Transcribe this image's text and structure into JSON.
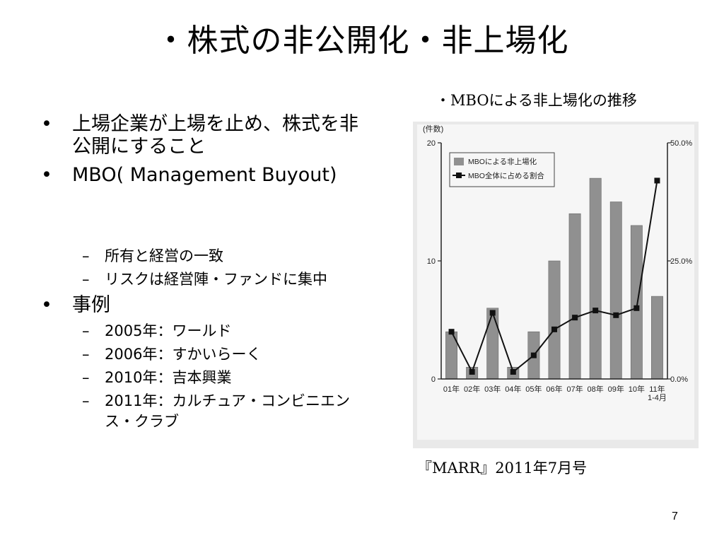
{
  "slide": {
    "title": "・株式の非公開化・非上場化",
    "page_number": "7",
    "source_note": "『MARR』2011年7月号",
    "chart_caption": "・MBOによる非上場化の推移"
  },
  "bullets": {
    "b1": "上場企業が上場を止め、株式を非公開にすること",
    "b2": "MBO( Management Buyout)",
    "s1": "所有と経営の一致",
    "s2": "リスクは経営陣・ファンドに集中",
    "b3": "事例",
    "s3": "2005年：ワールド",
    "s4": "2006年：すかいらーく",
    "s5": "2010年：吉本興業",
    "s6": "2011年：カルチュア・コンビニエンス・クラブ",
    "bullet_glyph": "•",
    "dash_glyph": "–"
  },
  "chart_data": {
    "type": "bar",
    "categories": [
      "01年",
      "02年",
      "03年",
      "04年",
      "05年",
      "06年",
      "07年",
      "08年",
      "09年",
      "10年",
      "11年 1-4月"
    ],
    "series": [
      {
        "name": "MBOによる非上場化",
        "kind": "bar",
        "axis": "left",
        "values": [
          4,
          1,
          6,
          1,
          4,
          10,
          14,
          17,
          15,
          13,
          7
        ]
      },
      {
        "name": "MBO全体に占める割合",
        "kind": "line",
        "axis": "right",
        "values": [
          10.0,
          1.5,
          14.0,
          1.5,
          5.0,
          10.5,
          13.0,
          14.5,
          13.5,
          15.0,
          42.0
        ]
      }
    ],
    "left_axis": {
      "label": "(件数)",
      "min": 0,
      "max": 20,
      "ticks": [
        0,
        10,
        20
      ]
    },
    "right_axis": {
      "min": 0,
      "max": 50,
      "ticks": [
        0,
        25,
        50
      ],
      "tick_labels": [
        "0.0%",
        "25.0%",
        "50.0%"
      ]
    },
    "legend_position": "top-left",
    "bar_color": "#909090",
    "line_color": "#111111"
  }
}
